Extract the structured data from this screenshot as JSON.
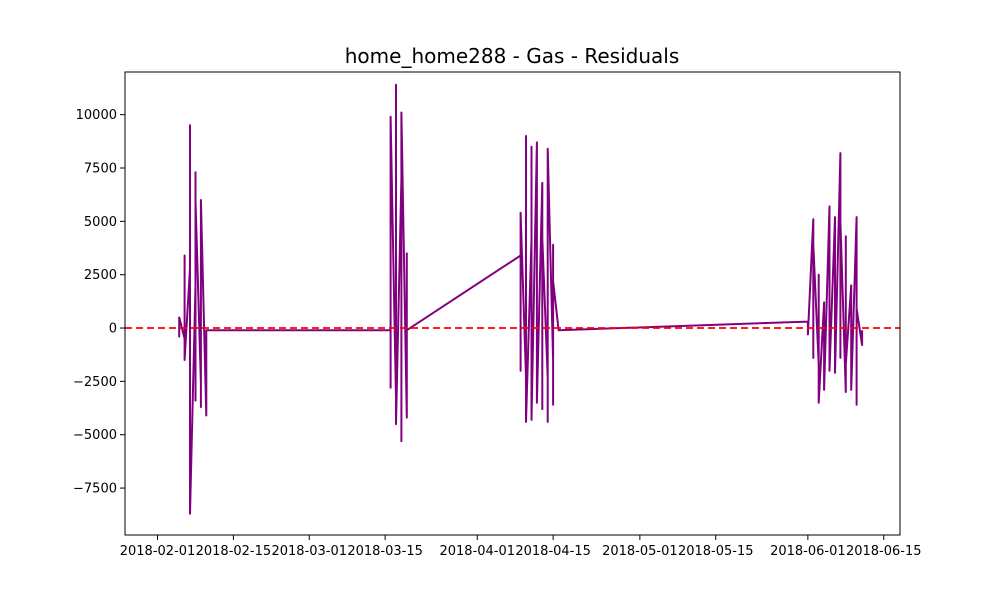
{
  "chart_data": {
    "type": "line",
    "title": "home_home288 - Gas - Residuals",
    "xlabel": "",
    "ylabel": "",
    "x_type": "date",
    "xlim": [
      "2018-01-26",
      "2018-06-18"
    ],
    "ylim": [
      -9700,
      12000
    ],
    "x_ticks": [
      "2018-02-01",
      "2018-02-15",
      "2018-03-01",
      "2018-03-15",
      "2018-04-01",
      "2018-04-15",
      "2018-05-01",
      "2018-05-15",
      "2018-06-01",
      "2018-06-15"
    ],
    "y_ticks": [
      -7500,
      -5000,
      -2500,
      0,
      2500,
      5000,
      7500,
      10000
    ],
    "grid": false,
    "reference_line": {
      "y": 0,
      "color": "#ff0000",
      "style": "dashed"
    },
    "series": [
      {
        "color": "#800080",
        "points": [
          [
            "2018-02-05",
            200
          ],
          [
            "2018-02-05",
            -400
          ],
          [
            "2018-02-05",
            500
          ],
          [
            "2018-02-06",
            -500
          ],
          [
            "2018-02-06",
            800
          ],
          [
            "2018-02-06",
            -300
          ],
          [
            "2018-02-06",
            3400
          ],
          [
            "2018-02-06",
            -1500
          ],
          [
            "2018-02-07",
            2800
          ],
          [
            "2018-02-07",
            -3000
          ],
          [
            "2018-02-07",
            7300
          ],
          [
            "2018-02-07",
            -1200
          ],
          [
            "2018-02-07",
            9500
          ],
          [
            "2018-02-07",
            -8700
          ],
          [
            "2018-02-08",
            2000
          ],
          [
            "2018-02-08",
            -1600
          ],
          [
            "2018-02-08",
            7300
          ],
          [
            "2018-02-08",
            -3400
          ],
          [
            "2018-02-08",
            6000
          ],
          [
            "2018-02-09",
            -2600
          ],
          [
            "2018-02-09",
            5800
          ],
          [
            "2018-02-09",
            -3700
          ],
          [
            "2018-02-09",
            5500
          ],
          [
            "2018-02-09",
            -3100
          ],
          [
            "2018-02-09",
            6000
          ],
          [
            "2018-02-10",
            -4100
          ],
          [
            "2018-02-10",
            -100
          ],
          [
            "2018-03-16",
            -100
          ],
          [
            "2018-03-16",
            6300
          ],
          [
            "2018-03-16",
            -2800
          ],
          [
            "2018-03-16",
            4000
          ],
          [
            "2018-03-16",
            9900
          ],
          [
            "2018-03-17",
            -3300
          ],
          [
            "2018-03-17",
            6200
          ],
          [
            "2018-03-17",
            -2600
          ],
          [
            "2018-03-17",
            11400
          ],
          [
            "2018-03-17",
            -4500
          ],
          [
            "2018-03-18",
            7000
          ],
          [
            "2018-03-18",
            -2800
          ],
          [
            "2018-03-18",
            6900
          ],
          [
            "2018-03-18",
            -5300
          ],
          [
            "2018-03-18",
            10100
          ],
          [
            "2018-03-19",
            -4200
          ],
          [
            "2018-03-19",
            3500
          ],
          [
            "2018-03-19",
            -300
          ],
          [
            "2018-03-19",
            -100
          ],
          [
            "2018-04-09",
            3400
          ],
          [
            "2018-04-09",
            -2000
          ],
          [
            "2018-04-09",
            5400
          ],
          [
            "2018-04-10",
            -2300
          ],
          [
            "2018-04-10",
            9000
          ],
          [
            "2018-04-10",
            -4400
          ],
          [
            "2018-04-11",
            4200
          ],
          [
            "2018-04-11",
            -1900
          ],
          [
            "2018-04-11",
            8500
          ],
          [
            "2018-04-11",
            -4300
          ],
          [
            "2018-04-12",
            8700
          ],
          [
            "2018-04-12",
            -3400
          ],
          [
            "2018-04-12",
            5000
          ],
          [
            "2018-04-12",
            -3500
          ],
          [
            "2018-04-13",
            6800
          ],
          [
            "2018-04-13",
            -3800
          ],
          [
            "2018-04-13",
            4200
          ],
          [
            "2018-04-14",
            -2300
          ],
          [
            "2018-04-14",
            7100
          ],
          [
            "2018-04-14",
            -4400
          ],
          [
            "2018-04-14",
            8400
          ],
          [
            "2018-04-15",
            -1500
          ],
          [
            "2018-04-15",
            3900
          ],
          [
            "2018-04-15",
            -3600
          ],
          [
            "2018-04-15",
            2200
          ],
          [
            "2018-04-16",
            -100
          ],
          [
            "2018-06-01",
            300
          ],
          [
            "2018-06-01",
            -300
          ],
          [
            "2018-06-02",
            5100
          ],
          [
            "2018-06-02",
            -1400
          ],
          [
            "2018-06-02",
            3900
          ],
          [
            "2018-06-03",
            -1700
          ],
          [
            "2018-06-03",
            2500
          ],
          [
            "2018-06-03",
            -3500
          ],
          [
            "2018-06-04",
            1200
          ],
          [
            "2018-06-04",
            -2900
          ],
          [
            "2018-06-05",
            5700
          ],
          [
            "2018-06-05",
            -2000
          ],
          [
            "2018-06-06",
            5200
          ],
          [
            "2018-06-06",
            -2100
          ],
          [
            "2018-06-07",
            8200
          ],
          [
            "2018-06-07",
            -1400
          ],
          [
            "2018-06-07",
            5000
          ],
          [
            "2018-06-08",
            -3000
          ],
          [
            "2018-06-08",
            4300
          ],
          [
            "2018-06-08",
            -1700
          ],
          [
            "2018-06-09",
            2000
          ],
          [
            "2018-06-09",
            -2900
          ],
          [
            "2018-06-10",
            5200
          ],
          [
            "2018-06-10",
            -3600
          ],
          [
            "2018-06-10",
            900
          ],
          [
            "2018-06-11",
            -800
          ],
          [
            "2018-06-11",
            -100
          ]
        ]
      }
    ]
  }
}
